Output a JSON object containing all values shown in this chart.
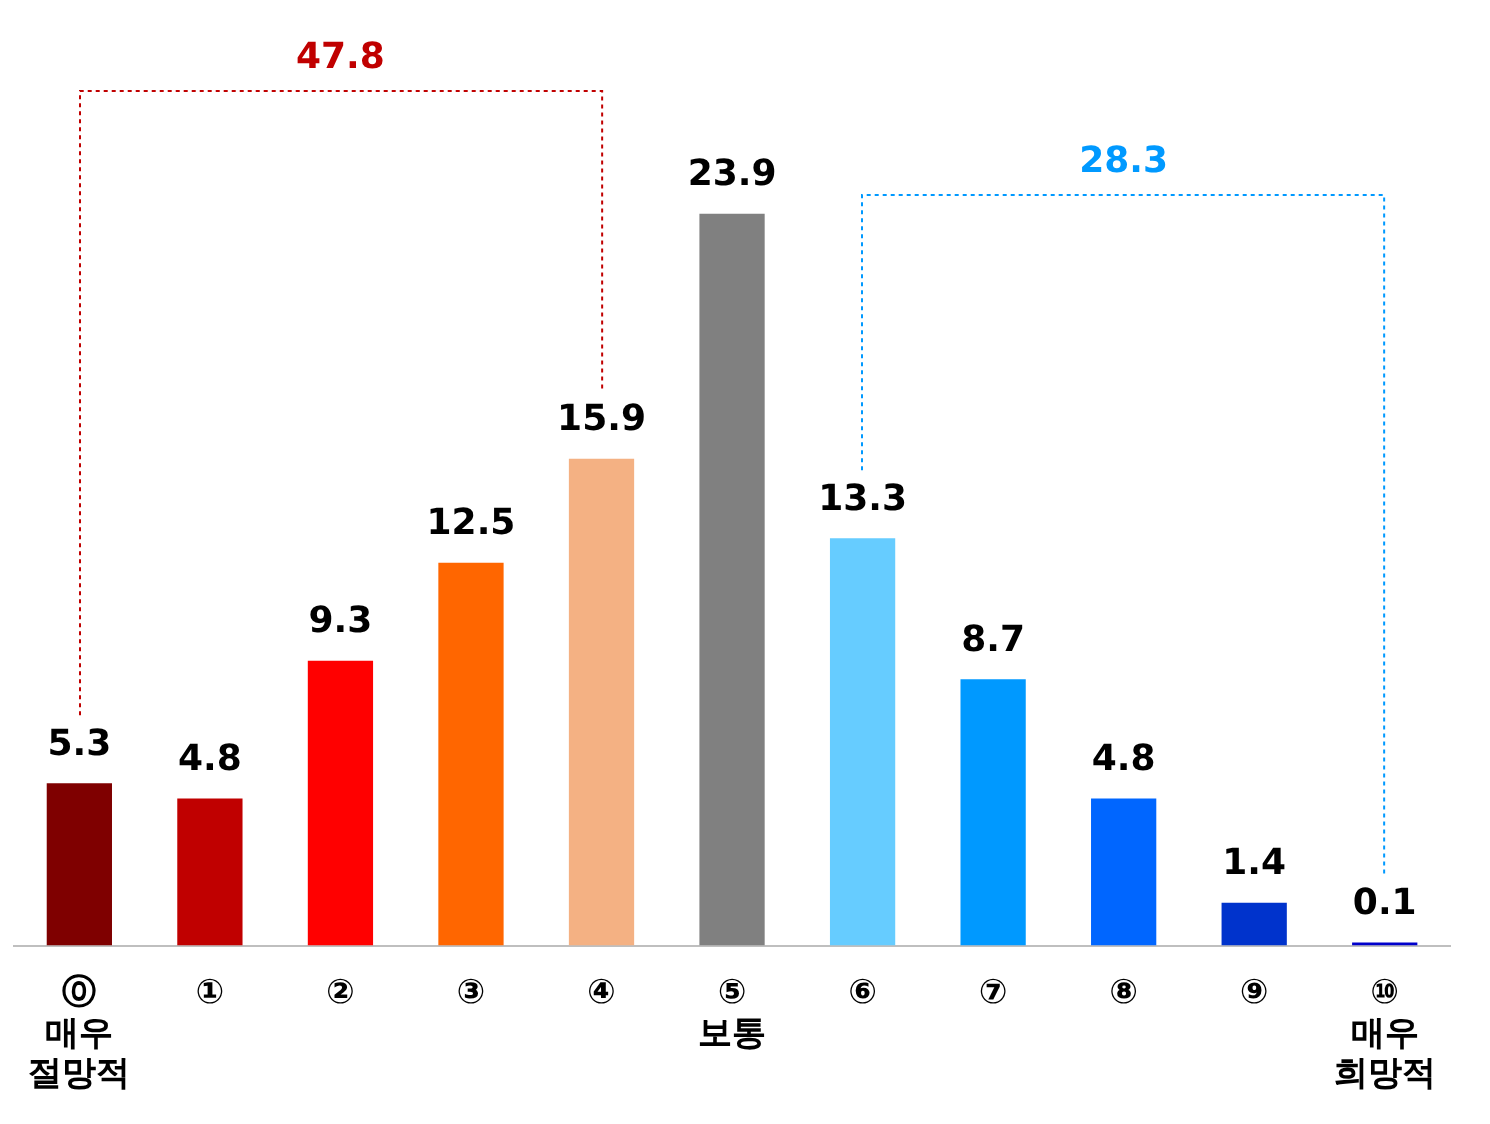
{
  "chart_data": {
    "type": "bar",
    "categories": [
      "⓪\n매우\n절망적",
      "①",
      "②",
      "③",
      "④",
      "⑤\n보통",
      "⑥",
      "⑦",
      "⑧",
      "⑨",
      "⑩\n매우\n희망적"
    ],
    "values": [
      5.3,
      4.8,
      9.3,
      12.5,
      15.9,
      23.9,
      13.3,
      8.7,
      4.8,
      1.4,
      0.1
    ],
    "colors": [
      "#7f0000",
      "#c00000",
      "#ff0000",
      "#ff6600",
      "#f4b183",
      "#808080",
      "#66ccff",
      "#0099ff",
      "#0066ff",
      "#0033cc",
      "#0000cc"
    ],
    "data_labels": true,
    "grid": false,
    "legend": false,
    "tick_labels": "x",
    "annotations": [
      "47.8",
      "28.3"
    ]
  }
}
